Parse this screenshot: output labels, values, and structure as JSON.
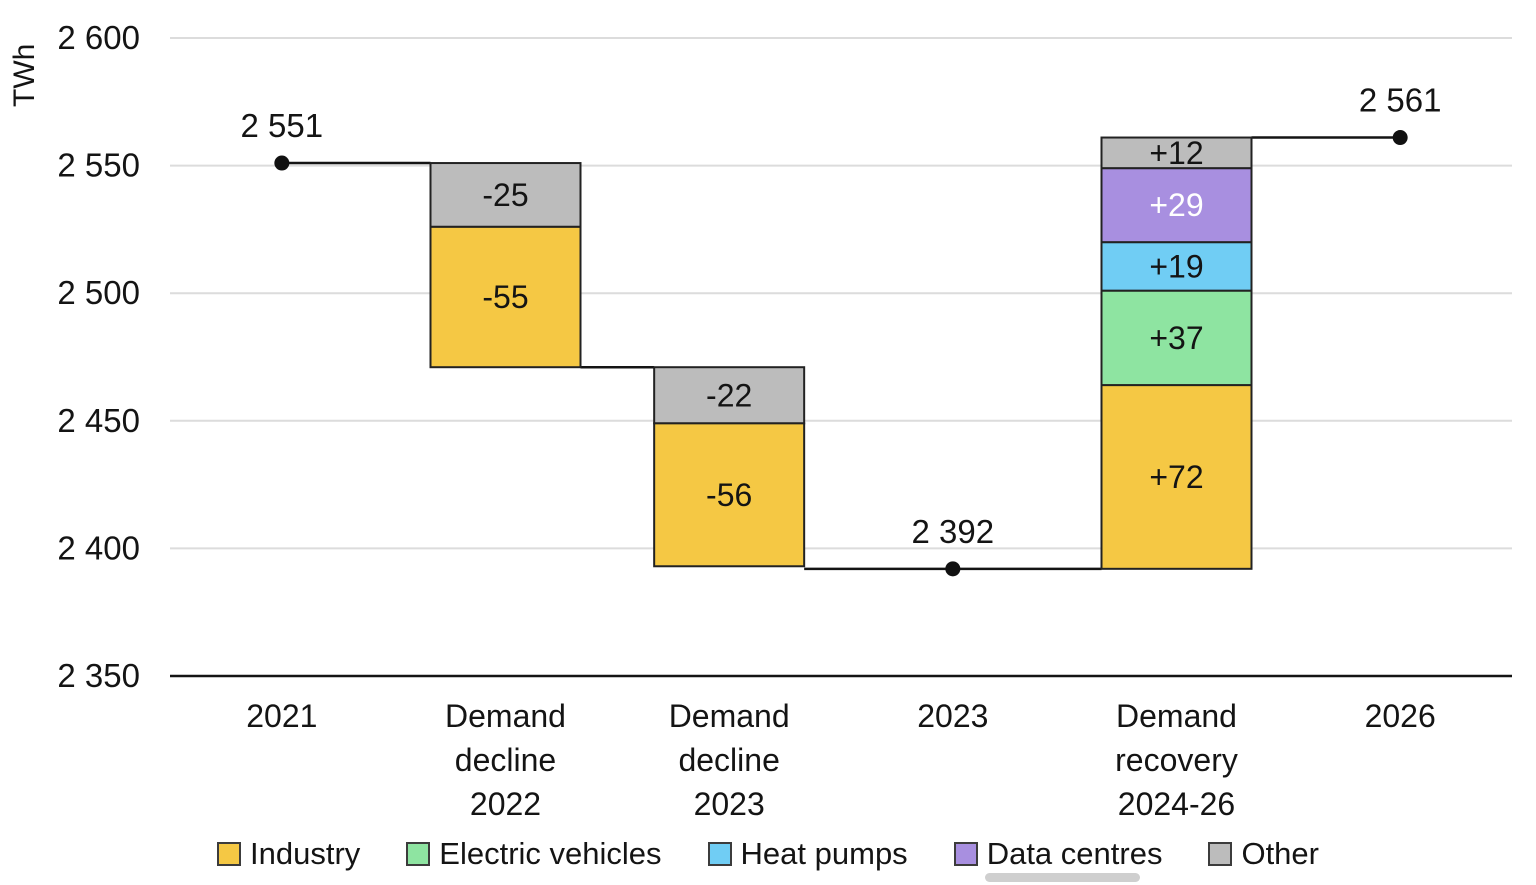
{
  "chart_data": {
    "type": "waterfall",
    "ylabel": "TWh",
    "ylim": [
      2350,
      2600
    ],
    "grid": "horizontal",
    "legend_position": "bottom",
    "yticks": [
      {
        "value": 2350,
        "label": "2 350"
      },
      {
        "value": 2400,
        "label": "2 400"
      },
      {
        "value": 2450,
        "label": "2 450"
      },
      {
        "value": 2500,
        "label": "2 500"
      },
      {
        "value": 2550,
        "label": "2 550"
      },
      {
        "value": 2600,
        "label": "2 600"
      }
    ],
    "columns": [
      {
        "type": "total",
        "x_label_lines": [
          "2021"
        ],
        "value": 2551,
        "value_label": "2 551"
      },
      {
        "type": "change",
        "x_label_lines": [
          "Demand",
          "decline",
          "2022"
        ],
        "start": 2551,
        "segments": [
          {
            "category": "Other",
            "value": -25,
            "label": "-25"
          },
          {
            "category": "Industry",
            "value": -55,
            "label": "-55"
          }
        ]
      },
      {
        "type": "change",
        "x_label_lines": [
          "Demand",
          "decline",
          "2023"
        ],
        "start": 2471,
        "segments": [
          {
            "category": "Other",
            "value": -22,
            "label": "-22"
          },
          {
            "category": "Industry",
            "value": -56,
            "label": "-56"
          }
        ]
      },
      {
        "type": "total",
        "x_label_lines": [
          "2023"
        ],
        "value": 2392,
        "value_label": "2 392"
      },
      {
        "type": "change",
        "x_label_lines": [
          "Demand",
          "recovery",
          "2024-26"
        ],
        "start": 2392,
        "segments": [
          {
            "category": "Industry",
            "value": 72,
            "label": "+72"
          },
          {
            "category": "Electric vehicles",
            "value": 37,
            "label": "+37"
          },
          {
            "category": "Heat pumps",
            "value": 19,
            "label": "+19"
          },
          {
            "category": "Data centres",
            "value": 29,
            "label": "+29",
            "label_color": "#ffffff"
          },
          {
            "category": "Other",
            "value": 12,
            "label": "+12"
          }
        ]
      },
      {
        "type": "total",
        "x_label_lines": [
          "2026"
        ],
        "value": 2561,
        "value_label": "2 561"
      }
    ],
    "connectors": [
      {
        "level": 2551,
        "from_col": 0,
        "to_col": 1
      },
      {
        "level": 2471,
        "from_col": 1,
        "to_col": 2
      },
      {
        "level": 2392,
        "from_col": 2,
        "to_col": 4
      },
      {
        "level": 2561,
        "from_col": 4,
        "to_col": 5
      }
    ],
    "legend": [
      {
        "label": "Industry",
        "color": "#F5C844"
      },
      {
        "label": "Electric vehicles",
        "color": "#8EE4A1"
      },
      {
        "label": "Heat pumps",
        "color": "#70CDF4"
      },
      {
        "label": "Data centres",
        "color": "#A88FE0"
      },
      {
        "label": "Other",
        "color": "#BCBCBC"
      }
    ],
    "colors": {
      "axis": "#141414",
      "gridline": "#DCDCDC",
      "connector": "#141414",
      "bar_stroke": "#222222",
      "dot": "#111111"
    }
  }
}
